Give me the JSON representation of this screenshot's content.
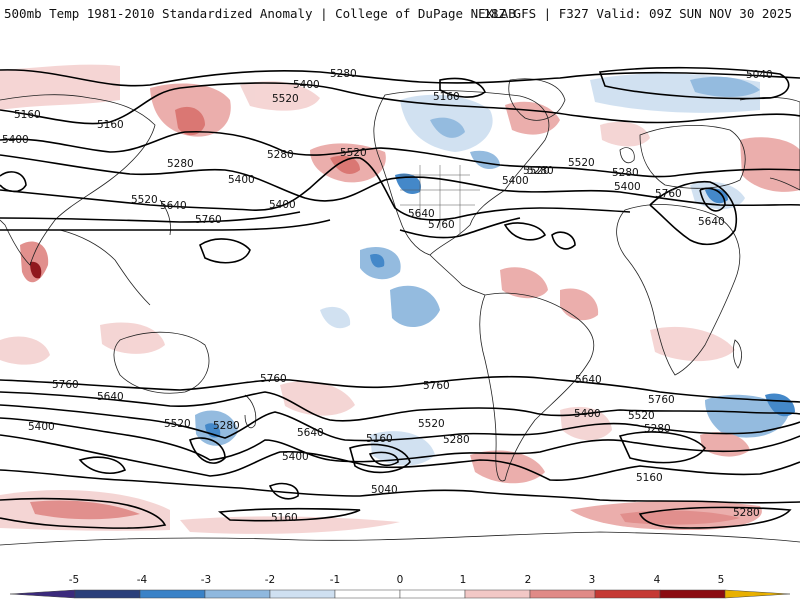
{
  "header": {
    "title": "500mb Temp 1981-2010 Standardized Anomaly | College of DuPage NEXLAB",
    "run_info": "18Z GFS | F327 Valid: 09Z SUN NOV 30 2025"
  },
  "map": {
    "height_labels": [
      {
        "id": "nh-5280-top",
        "text": "5280"
      },
      {
        "id": "nh-5040-ne",
        "text": "5040"
      },
      {
        "id": "nh-5400-a",
        "text": "5400"
      },
      {
        "id": "nh-5520-a",
        "text": "5520"
      },
      {
        "id": "nh-5160-w",
        "text": "5160"
      },
      {
        "id": "nh-5160-w2",
        "text": "5160"
      },
      {
        "id": "nh-5400-w",
        "text": "5400"
      },
      {
        "id": "nh-5280-pac",
        "text": "5280"
      },
      {
        "id": "nh-5280-pac2",
        "text": "5280"
      },
      {
        "id": "nh-5520-pac",
        "text": "5520"
      },
      {
        "id": "nh-5400-pac",
        "text": "5400"
      },
      {
        "id": "nh-5400-pac2",
        "text": "5400"
      },
      {
        "id": "nh-5520-w",
        "text": "5520"
      },
      {
        "id": "nh-5640-w",
        "text": "5640"
      },
      {
        "id": "nh-5760-w",
        "text": "5760"
      },
      {
        "id": "nh-5160-can",
        "text": "5160"
      },
      {
        "id": "nh-5520-us",
        "text": "5520"
      },
      {
        "id": "nh-5280-can",
        "text": "5280"
      },
      {
        "id": "nh-5400-us",
        "text": "5400"
      },
      {
        "id": "nh-5640-us",
        "text": "5640"
      },
      {
        "id": "nh-5760-us",
        "text": "5760"
      },
      {
        "id": "nh-5520-atl",
        "text": "5520"
      },
      {
        "id": "nh-5280-eu",
        "text": "5280"
      },
      {
        "id": "nh-5400-eu",
        "text": "5400"
      },
      {
        "id": "nh-5760-eu",
        "text": "5760"
      },
      {
        "id": "nh-5640-eu",
        "text": "5640"
      },
      {
        "id": "sh-5760-a",
        "text": "5760"
      },
      {
        "id": "sh-5640-a",
        "text": "5640"
      },
      {
        "id": "sh-5400-a",
        "text": "5400"
      },
      {
        "id": "sh-5520-a",
        "text": "5520"
      },
      {
        "id": "sh-5280-a",
        "text": "5280"
      },
      {
        "id": "sh-5760-b",
        "text": "5760"
      },
      {
        "id": "sh-5640-b",
        "text": "5640"
      },
      {
        "id": "sh-5400-b",
        "text": "5400"
      },
      {
        "id": "sh-5160-b",
        "text": "5160"
      },
      {
        "id": "sh-5760-c",
        "text": "5760"
      },
      {
        "id": "sh-5520-c",
        "text": "5520"
      },
      {
        "id": "sh-5280-c",
        "text": "5280"
      },
      {
        "id": "sh-5040-c",
        "text": "5040"
      },
      {
        "id": "sh-5640-d",
        "text": "5640"
      },
      {
        "id": "sh-5400-d",
        "text": "5400"
      },
      {
        "id": "sh-5760-d",
        "text": "5760"
      },
      {
        "id": "sh-5520-d",
        "text": "5520"
      },
      {
        "id": "sh-5280-d",
        "text": "5280"
      },
      {
        "id": "sh-5160-d",
        "text": "5160"
      },
      {
        "id": "sh-5160-e",
        "text": "5160"
      },
      {
        "id": "sh-5280-e",
        "text": "5280"
      }
    ]
  },
  "colorbar": {
    "ticks": [
      "-5",
      "-4",
      "-3",
      "-2",
      "-1",
      "0",
      "1",
      "2",
      "3",
      "4",
      "5"
    ],
    "colors": [
      "#3b2a7c",
      "#2a3f7a",
      "#3a82c7",
      "#8fb8de",
      "#cfe0f1",
      "#ffffff",
      "#ffffff",
      "#f2c8c6",
      "#e08a87",
      "#c53a35",
      "#8b0c12",
      "#e8b000"
    ]
  }
}
